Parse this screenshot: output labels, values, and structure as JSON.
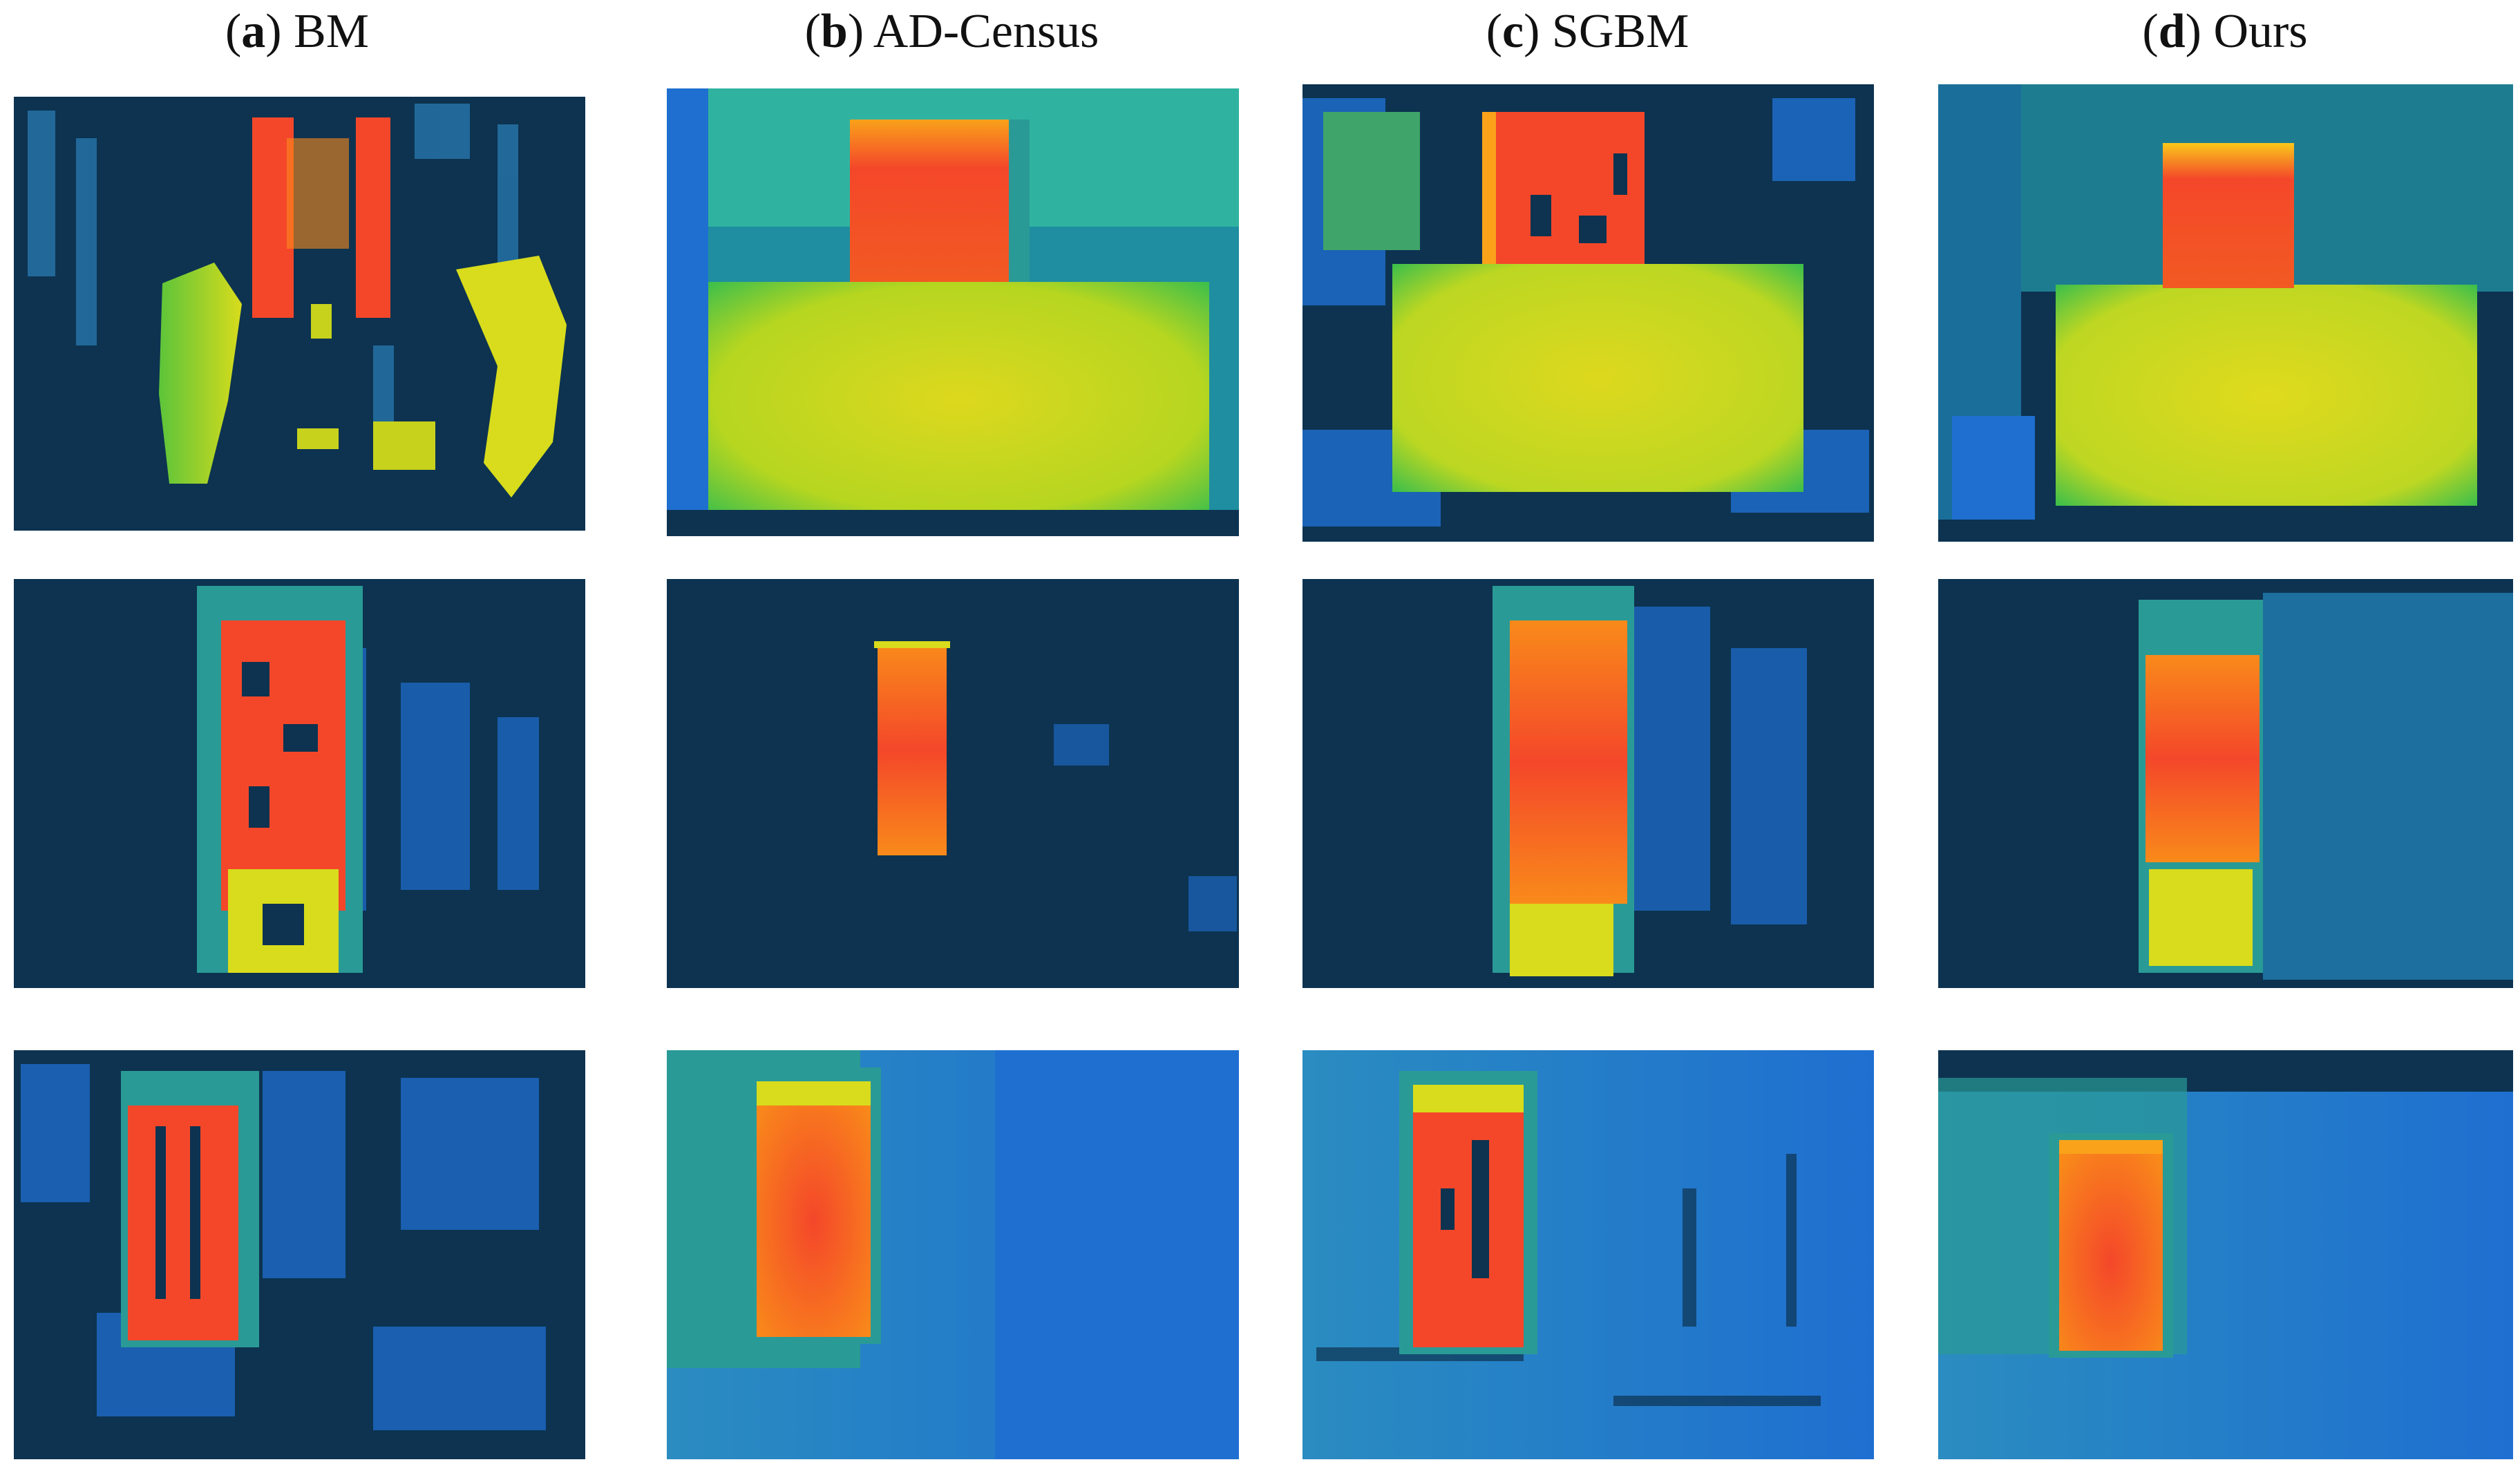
{
  "columns": [
    {
      "letter": "a",
      "name": "BM"
    },
    {
      "letter": "b",
      "name": "AD-Census"
    },
    {
      "letter": "c",
      "name": "SGBM"
    },
    {
      "letter": "d",
      "name": "Ours"
    }
  ],
  "colors": {
    "background": "#0d3350",
    "near_red": "#f4472a",
    "mid_orange": "#f98a1a",
    "yellow": "#d8dc1c",
    "green": "#5cc43a",
    "teal": "#2a9a96",
    "blue": "#1f6fd0"
  }
}
